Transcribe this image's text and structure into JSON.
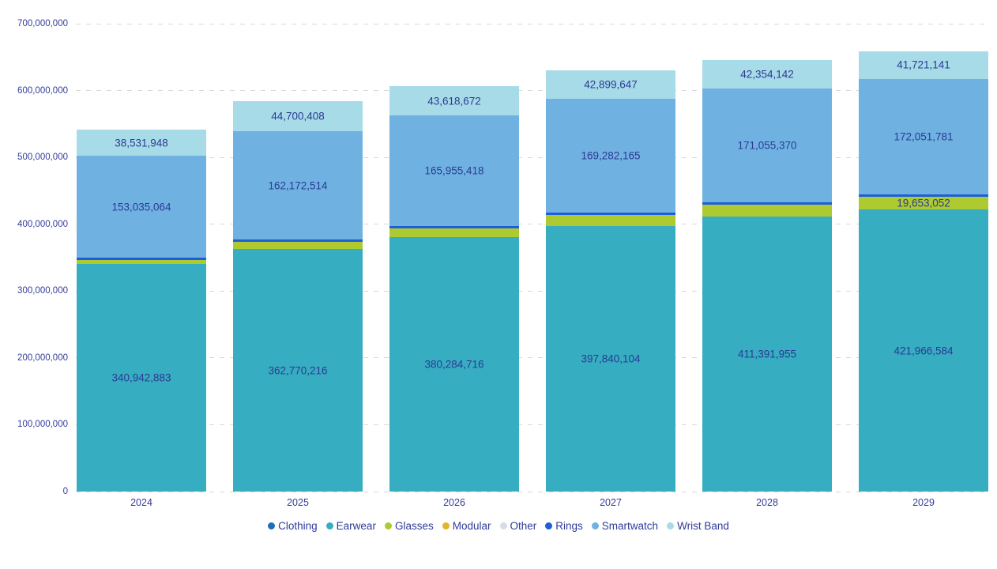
{
  "chart_data": {
    "type": "bar",
    "stacked": true,
    "orientation": "vertical",
    "categories": [
      "2024",
      "2025",
      "2026",
      "2027",
      "2028",
      "2029"
    ],
    "series": [
      {
        "name": "Clothing",
        "color": "#1d6fbe",
        "values": [
          0,
          0,
          0,
          0,
          0,
          0
        ],
        "value_labels": [
          null,
          null,
          null,
          null,
          null,
          null
        ]
      },
      {
        "name": "Earwear",
        "color": "#36adc1",
        "values": [
          340942883,
          362770216,
          380284716,
          397840104,
          411391955,
          421966584
        ],
        "value_labels": [
          "340,942,883",
          "362,770,216",
          "380,284,716",
          "397,840,104",
          "411,391,955",
          "421,966,584"
        ]
      },
      {
        "name": "Glasses",
        "color": "#adcb30",
        "values": [
          5000000,
          10500000,
          13000000,
          16500000,
          17500000,
          19653052
        ],
        "value_labels": [
          null,
          null,
          null,
          null,
          null,
          "19,653,052"
        ]
      },
      {
        "name": "Modular",
        "color": "#e4b42b",
        "values": [
          0,
          0,
          0,
          0,
          0,
          0
        ],
        "value_labels": [
          null,
          null,
          null,
          null,
          null,
          null
        ]
      },
      {
        "name": "Other",
        "color": "#d8dce3",
        "values": [
          0,
          0,
          0,
          0,
          0,
          0
        ],
        "value_labels": [
          null,
          null,
          null,
          null,
          null,
          null
        ]
      },
      {
        "name": "Rings",
        "color": "#1e5ed8",
        "values": [
          3500000,
          3500000,
          3500000,
          3500000,
          3500000,
          3500000
        ],
        "value_labels": [
          null,
          null,
          null,
          null,
          null,
          null
        ]
      },
      {
        "name": "Smartwatch",
        "color": "#6fb2e2",
        "values": [
          153035064,
          162172514,
          165955418,
          169282165,
          171055370,
          172051781
        ],
        "value_labels": [
          "153,035,064",
          "162,172,514",
          "165,955,418",
          "169,282,165",
          "171,055,370",
          "172,051,781"
        ]
      },
      {
        "name": "Wrist Band",
        "color": "#a7dbe8",
        "values": [
          38531948,
          44700408,
          43618672,
          42899647,
          42354142,
          41721141
        ],
        "value_labels": [
          "38,531,948",
          "44,700,408",
          "43,618,672",
          "42,899,647",
          "42,354,142",
          "41,721,141"
        ]
      }
    ],
    "ylim": [
      0,
      700000000
    ],
    "yticks": [
      "0",
      "100,000,000",
      "200,000,000",
      "300,000,000",
      "400,000,000",
      "500,000,000",
      "600,000,000",
      "700,000,000"
    ],
    "grid": "horizontal-dashed",
    "legend_position": "bottom",
    "title": "",
    "xlabel": "",
    "ylabel": ""
  },
  "colors": {
    "background": "#ffffff",
    "grid": "#d8d8d8",
    "axis_text": "#343d9b",
    "value_label_text": "#2c3a94",
    "legend_text": "#2f3a9a"
  }
}
